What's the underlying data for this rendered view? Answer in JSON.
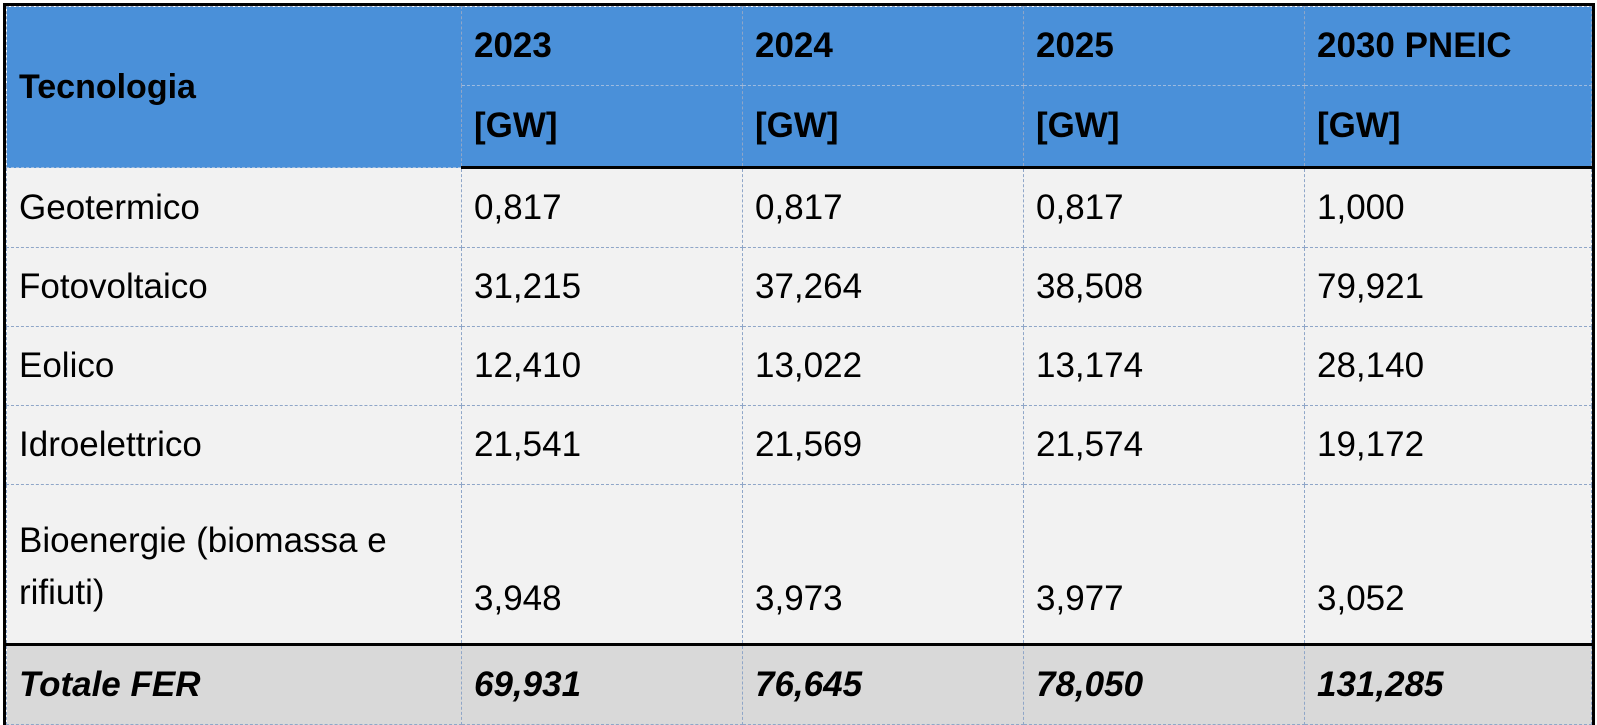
{
  "header": {
    "technology_label": "Tecnologia",
    "years": [
      "2023",
      "2024",
      "2025",
      "2030 PNEIC"
    ],
    "unit": "[GW]"
  },
  "rows": [
    {
      "label": "Geotermico",
      "values": [
        "0,817",
        "0,817",
        "0,817",
        "1,000"
      ]
    },
    {
      "label": "Fotovoltaico",
      "values": [
        "31,215",
        "37,264",
        "38,508",
        "79,921"
      ]
    },
    {
      "label": "Eolico",
      "values": [
        "12,410",
        "13,022",
        "13,174",
        "28,140"
      ]
    },
    {
      "label": "Idroelettrico",
      "values": [
        "21,541",
        "21,569",
        "21,574",
        "19,172"
      ]
    },
    {
      "label": "Bioenergie (biomassa e rifiuti)",
      "values": [
        "3,948",
        "3,973",
        "3,977",
        "3,052"
      ]
    }
  ],
  "total": {
    "label": "Totale FER",
    "values": [
      "69,931",
      "76,645",
      "78,050",
      "131,285"
    ]
  },
  "colors": {
    "header_bg": "#4a90d9",
    "body_bg": "#f2f2f2",
    "total_bg": "#d9d9d9"
  }
}
